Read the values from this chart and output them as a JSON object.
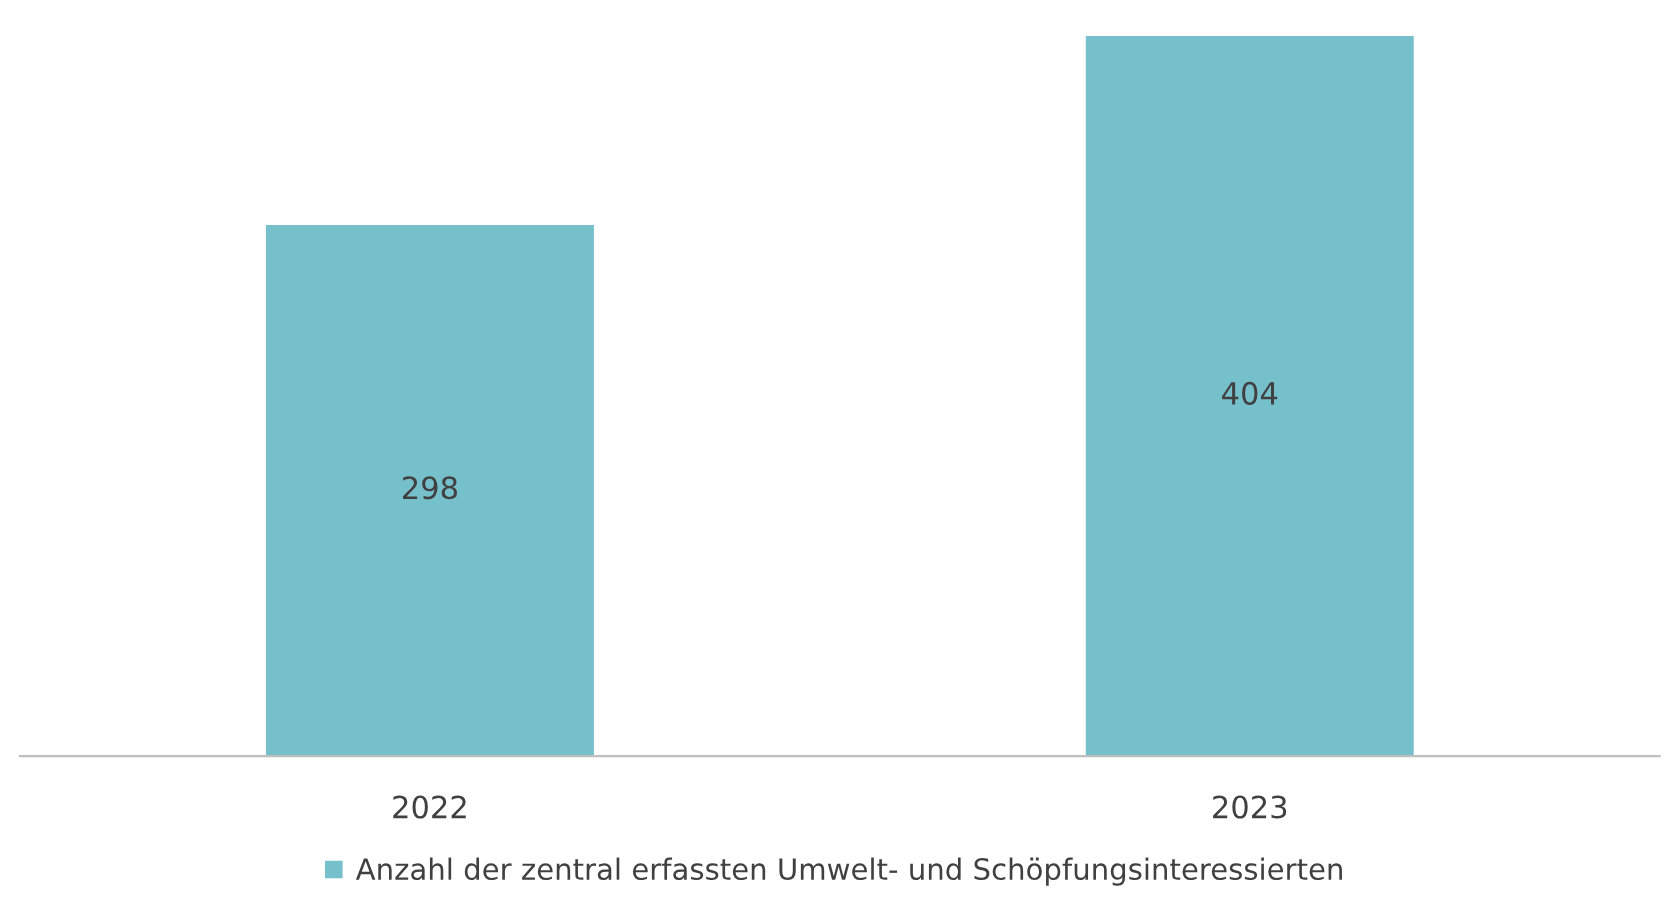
{
  "chart_data": {
    "type": "bar",
    "categories": [
      "2022",
      "2023"
    ],
    "series": [
      {
        "name": "Anzahl der zentral erfassten Umwelt- und Schöpfungsinteressierten",
        "color": "#76c0cc",
        "values": [
          298,
          404
        ]
      }
    ],
    "tick_labels": "x",
    "data_labels": true,
    "grid": false,
    "legend": "bottom"
  }
}
